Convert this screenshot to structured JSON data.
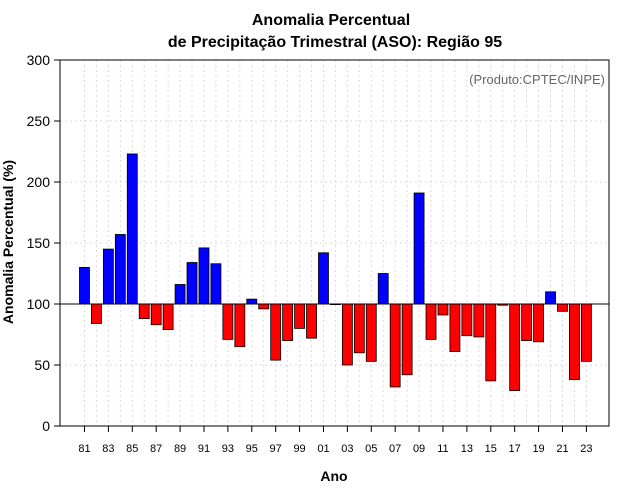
{
  "chart_data": {
    "type": "bar",
    "title_line1": "Anomalia Percentual",
    "title_line2": "de Precipitação Trimestral (ASO): Região 95",
    "xlabel": "Ano",
    "ylabel": "Anomalia Percentual (%)",
    "credit": "(Produto:CPTEC/INPE)",
    "ylim": [
      0,
      300
    ],
    "yticks": [
      0,
      50,
      100,
      150,
      200,
      250,
      300
    ],
    "baseline": 100,
    "grid": true,
    "colors": {
      "above": "#0000ff",
      "below": "#ff0000",
      "edge": "#000000",
      "grid": "#d9d9d9"
    },
    "categories": [
      "81",
      "82",
      "83",
      "84",
      "85",
      "86",
      "87",
      "88",
      "89",
      "90",
      "91",
      "92",
      "93",
      "94",
      "95",
      "96",
      "97",
      "98",
      "99",
      "00",
      "01",
      "02",
      "03",
      "04",
      "05",
      "06",
      "07",
      "08",
      "09",
      "10",
      "11",
      "12",
      "13",
      "14",
      "15",
      "16",
      "17",
      "18",
      "19",
      "20",
      "21",
      "22",
      "23"
    ],
    "tick_labels": [
      "81",
      "83",
      "85",
      "87",
      "89",
      "91",
      "93",
      "95",
      "97",
      "99",
      "01",
      "03",
      "05",
      "07",
      "09",
      "11",
      "13",
      "15",
      "17",
      "19",
      "21",
      "23"
    ],
    "values": [
      130,
      84,
      145,
      157,
      223,
      88,
      83,
      79,
      116,
      134,
      146,
      133,
      71,
      65,
      104,
      96,
      54,
      70,
      80,
      72,
      142,
      100,
      50,
      60,
      53,
      125,
      32,
      42,
      191,
      71,
      91,
      61,
      74,
      73,
      37,
      99,
      29,
      70,
      69,
      110,
      94,
      38,
      53
    ]
  }
}
